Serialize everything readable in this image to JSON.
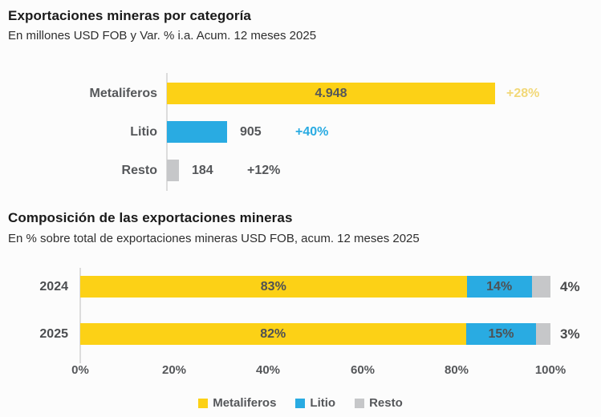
{
  "colors": {
    "background": "#FCFCFC",
    "metaliferos": "#FCD116",
    "litio": "#29ABE2",
    "resto": "#C6C7C9",
    "axis_line": "#DCDCDC"
  },
  "chart_data": [
    {
      "type": "bar",
      "orientation": "horizontal",
      "title": "Exportaciones mineras por categoría",
      "subtitle": "En millones USD FOB y Var. % i.a. Acum. 12 meses 2025",
      "unit": "millones USD FOB",
      "categories": [
        "Metaliferos",
        "Litio",
        "Resto"
      ],
      "values": [
        4948,
        905,
        184
      ],
      "value_labels": [
        "4.948",
        "905",
        "184"
      ],
      "change_labels": [
        "+28%",
        "+40%",
        "+12%"
      ],
      "bar_colors": [
        "#FCD116",
        "#29ABE2",
        "#C6C7C9"
      ],
      "change_label_colors": [
        "#F2D878",
        "#29ABE2",
        "#55575A"
      ],
      "grid": false
    },
    {
      "type": "bar",
      "subtype": "stacked",
      "orientation": "horizontal",
      "title": "Composición de las exportaciones mineras",
      "subtitle": "En % sobre total de exportaciones mineras USD FOB, acum. 12 meses 2025",
      "categories": [
        "2024",
        "2025"
      ],
      "series": [
        {
          "name": "Metaliferos",
          "color": "#FCD116",
          "values": [
            83,
            82
          ],
          "labels": [
            "83%",
            "82%"
          ]
        },
        {
          "name": "Litio",
          "color": "#29ABE2",
          "values": [
            14,
            15
          ],
          "labels": [
            "14%",
            "15%"
          ]
        },
        {
          "name": "Resto",
          "color": "#C6C7C9",
          "values": [
            4,
            3
          ],
          "labels": [
            "4%",
            "3%"
          ]
        }
      ],
      "xlim": [
        0,
        100
      ],
      "xticks": [
        "0%",
        "20%",
        "40%",
        "60%",
        "80%",
        "100%"
      ],
      "legend": [
        "Metaliferos",
        "Litio",
        "Resto"
      ],
      "legend_position": "bottom",
      "grid": false
    }
  ]
}
